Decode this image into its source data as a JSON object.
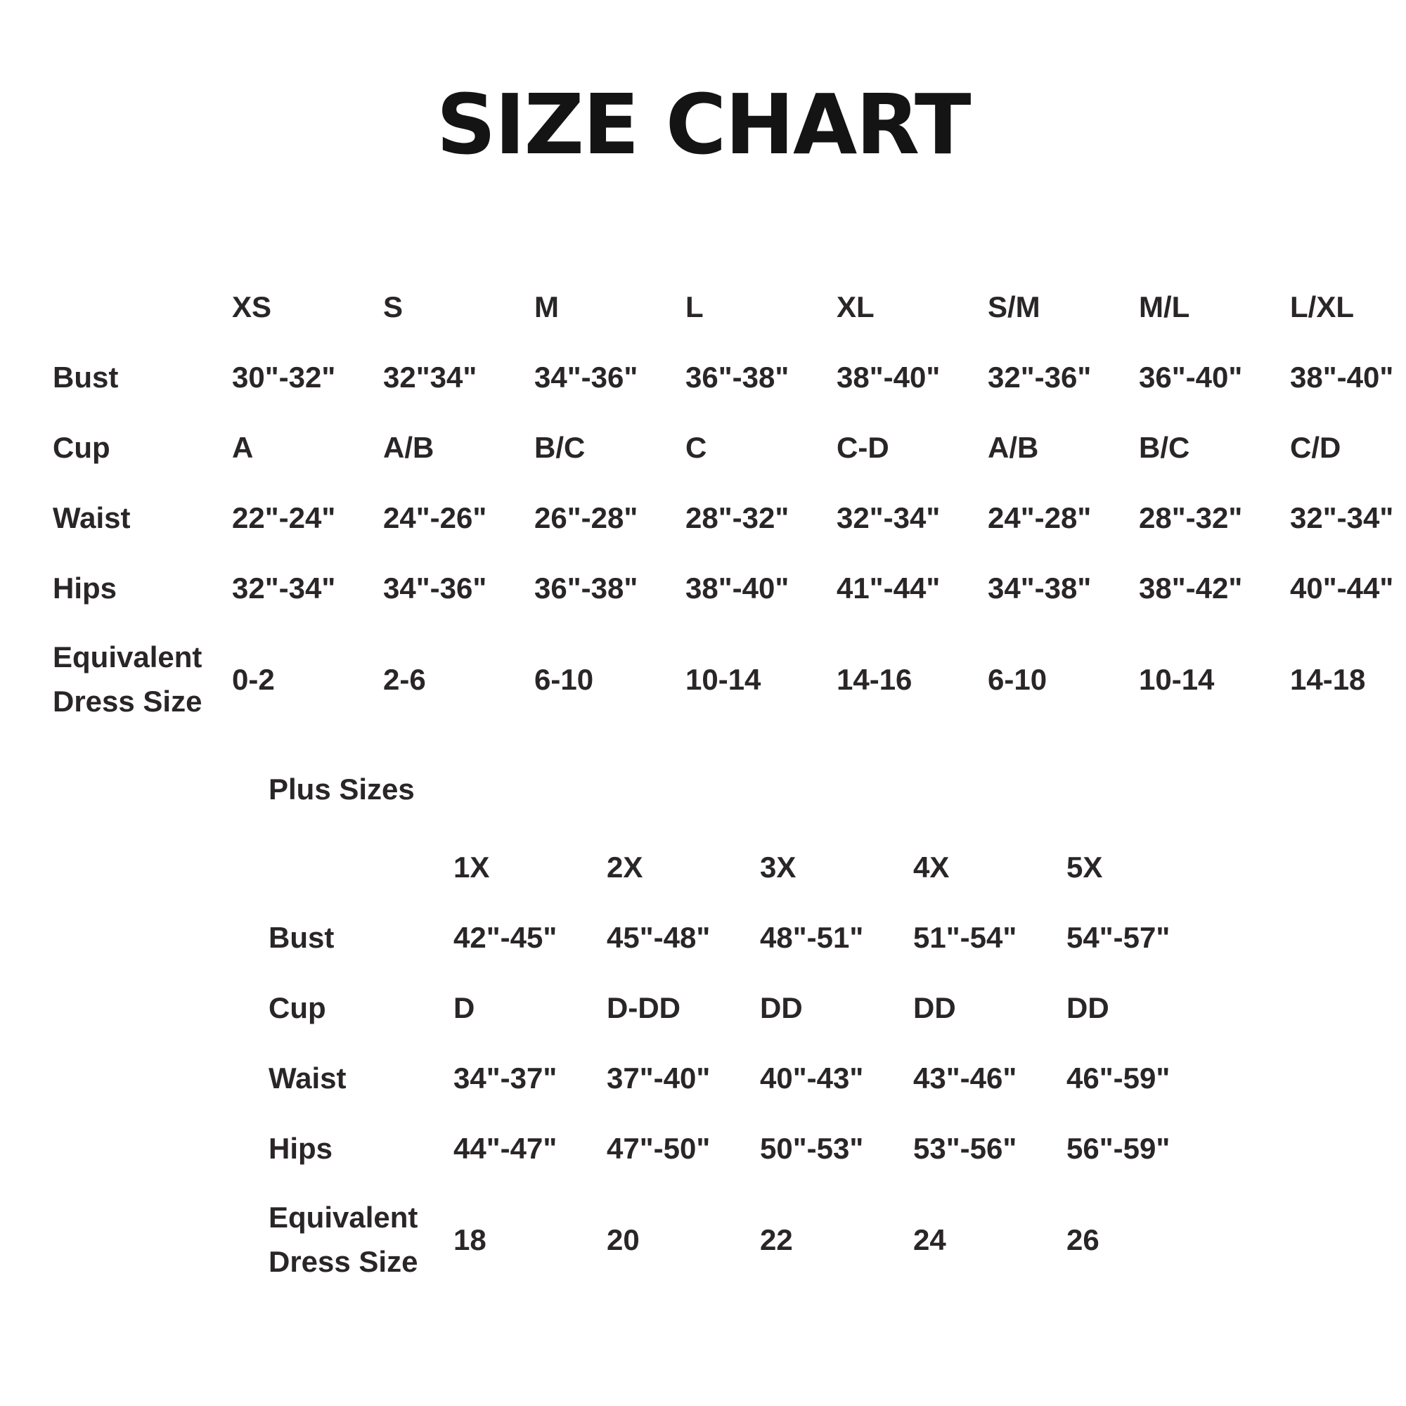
{
  "title": "SIZE CHART",
  "plus_heading": "Plus Sizes",
  "colors": {
    "background": "#ffffff",
    "title_text": "#141414",
    "body_text": "#2a2627"
  },
  "chart_data": [
    {
      "type": "table",
      "title": "",
      "columns": [
        "XS",
        "S",
        "M",
        "L",
        "XL",
        "S/M",
        "M/L",
        "L/XL"
      ],
      "rows": [
        {
          "label": "Bust",
          "values": [
            "30\"-32\"",
            "32\"34\"",
            "34\"-36\"",
            "36\"-38\"",
            "38\"-40\"",
            "32\"-36\"",
            "36\"-40\"",
            "38\"-40\""
          ]
        },
        {
          "label": "Cup",
          "values": [
            "A",
            "A/B",
            "B/C",
            "C",
            "C-D",
            "A/B",
            "B/C",
            "C/D"
          ]
        },
        {
          "label": "Waist",
          "values": [
            "22\"-24\"",
            "24\"-26\"",
            "26\"-28\"",
            "28\"-32\"",
            "32\"-34\"",
            "24\"-28\"",
            "28\"-32\"",
            "32\"-34\""
          ]
        },
        {
          "label": "Hips",
          "values": [
            "32\"-34\"",
            "34\"-36\"",
            "36\"-38\"",
            "38\"-40\"",
            "41\"-44\"",
            "34\"-38\"",
            "38\"-42\"",
            "40\"-44\""
          ]
        },
        {
          "label": "Equivalent Dress Size",
          "values": [
            "0-2",
            "2-6",
            "6-10",
            "10-14",
            "14-16",
            "6-10",
            "10-14",
            "14-18"
          ]
        }
      ]
    },
    {
      "type": "table",
      "title": "Plus Sizes",
      "columns": [
        "1X",
        "2X",
        "3X",
        "4X",
        "5X"
      ],
      "rows": [
        {
          "label": "Bust",
          "values": [
            "42\"-45\"",
            "45\"-48\"",
            "48\"-51\"",
            "51\"-54\"",
            "54\"-57\""
          ]
        },
        {
          "label": "Cup",
          "values": [
            "D",
            "D-DD",
            "DD",
            "DD",
            "DD"
          ]
        },
        {
          "label": "Waist",
          "values": [
            "34\"-37\"",
            "37\"-40\"",
            "40\"-43\"",
            "43\"-46\"",
            "46\"-59\""
          ]
        },
        {
          "label": "Hips",
          "values": [
            "44\"-47\"",
            "47\"-50\"",
            "50\"-53\"",
            "53\"-56\"",
            "56\"-59\""
          ]
        },
        {
          "label": "Equivalent Dress Size",
          "values": [
            "18",
            "20",
            "22",
            "24",
            "26"
          ]
        }
      ]
    }
  ]
}
